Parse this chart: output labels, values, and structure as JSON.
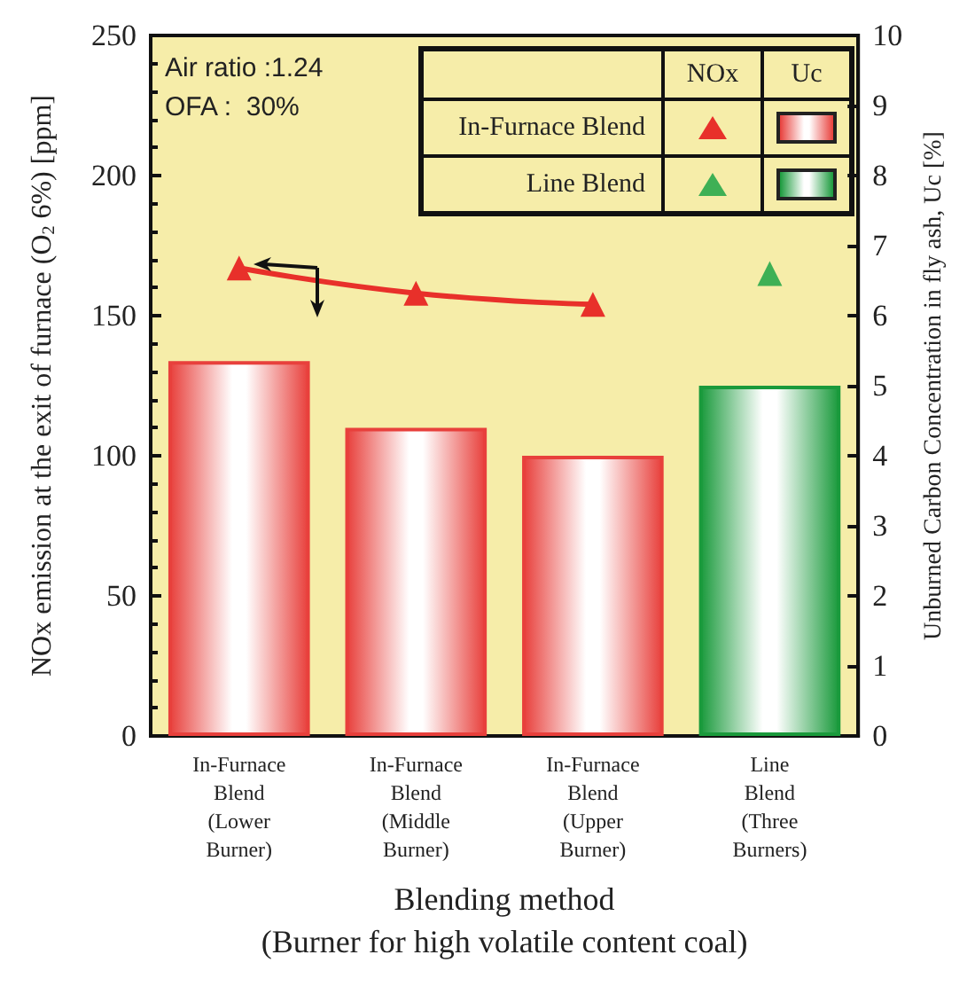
{
  "chart_data": {
    "type": "bar",
    "xlabel": "Blending method\n(Burner for high volatile content coal)",
    "ylabel": "NOx emission at the exit of furnace (O$_{2}$ 6%) [ppm]",
    "y2label": "Unburned Carbon Concentration in fly ash, Uc [%]",
    "categories": [
      "In-Furnace\nBlend\n(Lower\nBurner)",
      "In-Furnace\nBlend\n(Middle\nBurner)",
      "In-Furnace\nBlend\n(Upper\nBurner)",
      "Line\nBlend\n(Three\nBurners)"
    ],
    "series": [
      {
        "name": "In-Furnace Blend",
        "type": "line",
        "color": "#e8302a",
        "values": [
          167,
          158,
          154,
          null
        ]
      },
      {
        "name": "Line Blend",
        "type": "scatter",
        "color": "#10a040",
        "values": [
          null,
          null,
          null,
          165
        ]
      },
      {
        "axis": "y2",
        "color": "#e8403c",
        "values": [
          5.35,
          4.4,
          4.0,
          null
        ]
      },
      {
        "axis": "y2",
        "color": "#1a9a3c",
        "values": [
          null,
          null,
          null,
          5.0
        ]
      }
    ],
    "ylim": [
      0,
      250
    ],
    "yticks": [
      0,
      50,
      100,
      150,
      200,
      250
    ],
    "y2lim": [
      0,
      10
    ],
    "y2ticks": [
      0,
      1,
      2,
      3,
      4,
      5,
      6,
      7,
      8,
      9,
      10
    ],
    "marker": "triangle",
    "legend": "top right",
    "annotations": [
      "Air ratio :1.24",
      "OFA :  30%",
      "NOx",
      "Uc"
    ]
  }
}
